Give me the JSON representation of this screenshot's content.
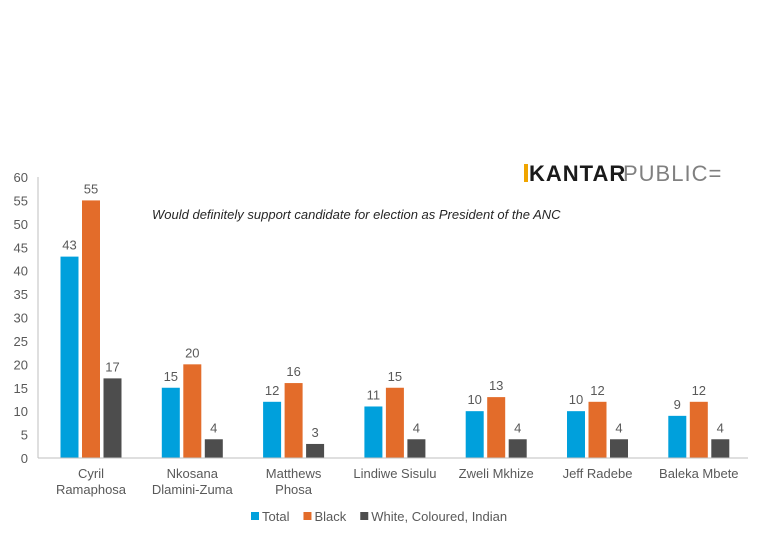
{
  "brand": {
    "part1": "KANTAR",
    "part2": "PUBLIC=",
    "accent_color": "#f0a500"
  },
  "chart_data": {
    "type": "bar",
    "subtitle": "Would definitely support candidate for election as President of the ANC",
    "categories": [
      [
        "Cyril",
        "Ramaphosa"
      ],
      [
        "Nkosana",
        "Dlamini-Zuma"
      ],
      [
        "Matthews",
        "Phosa"
      ],
      [
        "Lindiwe Sisulu"
      ],
      [
        "Zweli Mkhize"
      ],
      [
        "Jeff Radebe"
      ],
      [
        "Baleka Mbete"
      ]
    ],
    "series": [
      {
        "name": "Total",
        "color": "#00a0dc",
        "values": [
          43,
          15,
          12,
          11,
          10,
          10,
          9
        ]
      },
      {
        "name": "Black",
        "color": "#e36c2a",
        "values": [
          55,
          20,
          16,
          15,
          13,
          12,
          12
        ]
      },
      {
        "name": "White, Coloured, Indian",
        "color": "#4d4d4d",
        "values": [
          17,
          4,
          3,
          4,
          4,
          4,
          4
        ]
      }
    ],
    "yticks": [
      0,
      5,
      10,
      15,
      20,
      25,
      30,
      35,
      40,
      45,
      50,
      55,
      60
    ],
    "ylim": [
      0,
      60
    ],
    "legend_position": "bottom",
    "grid": false
  }
}
